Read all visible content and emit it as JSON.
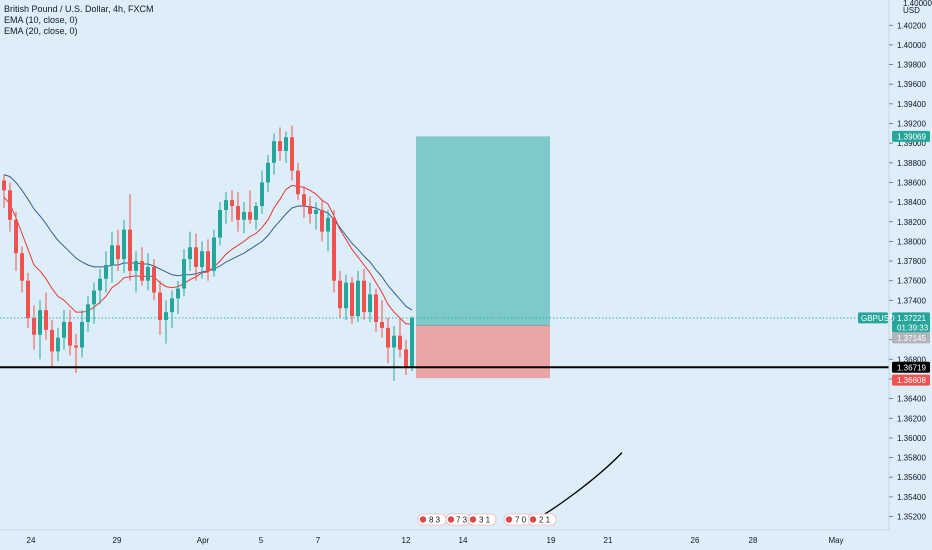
{
  "legend": {
    "symbol_line": "British Pound / U.S. Dollar, 4h, FXCM",
    "ema_fast": "EMA (10, close, 0)",
    "ema_slow": "EMA (20, close, 0)"
  },
  "colors": {
    "background": "#ddeef9",
    "up": "#26a69a",
    "down": "#ef5350",
    "ema_fast": "#e53935",
    "ema_slow": "#3a5f8a",
    "profit_zone": "#7ecacb",
    "loss_zone": "#eaa3a6",
    "support": "#000000",
    "current_price_tag": "#26a69a",
    "tp_tag": "#26a69a",
    "sl_tag": "#ef5350",
    "prev_price_tag": "#b2b5be",
    "level_tag": "#000000"
  },
  "chart_data": {
    "type": "candlestick",
    "title": "British Pound / U.S. Dollar, 4h, FXCM",
    "currency": "USD",
    "y_axis": {
      "ticks": [
        "1.35200",
        "1.35400",
        "1.35600",
        "1.35800",
        "1.36000",
        "1.36200",
        "1.36400",
        "1.36600",
        "1.36800",
        "1.37000",
        "1.37200",
        "1.37400",
        "1.37600",
        "1.37800",
        "1.38000",
        "1.38200",
        "1.38400",
        "1.38600",
        "1.38800",
        "1.39000",
        "1.39200",
        "1.39400",
        "1.39600",
        "1.39800",
        "1.40000",
        "1.40200"
      ],
      "range": [
        1.3513,
        1.4028
      ]
    },
    "x_axis": {
      "labels": [
        "24",
        "29",
        "Apr",
        "5",
        "7",
        "12",
        "14",
        "19",
        "21",
        "26",
        "28",
        "May"
      ]
    },
    "series_names": [
      "EMA (10, close, 0)",
      "EMA (20, close, 0)"
    ],
    "ohlc": [
      [
        1.3862,
        1.3868,
        1.3834,
        1.3852
      ],
      [
        1.3852,
        1.386,
        1.381,
        1.3822
      ],
      [
        1.3822,
        1.383,
        1.377,
        1.3788
      ],
      [
        1.3788,
        1.3795,
        1.3748,
        1.376
      ],
      [
        1.376,
        1.3768,
        1.3712,
        1.3722
      ],
      [
        1.3722,
        1.3735,
        1.369,
        1.3705
      ],
      [
        1.3705,
        1.374,
        1.368,
        1.373
      ],
      [
        1.373,
        1.3748,
        1.37,
        1.371
      ],
      [
        1.371,
        1.372,
        1.3672,
        1.3688
      ],
      [
        1.3688,
        1.3712,
        1.3678,
        1.3702
      ],
      [
        1.3702,
        1.373,
        1.369,
        1.3718
      ],
      [
        1.3718,
        1.373,
        1.3684,
        1.3694
      ],
      [
        1.3694,
        1.3706,
        1.3666,
        1.3692
      ],
      [
        1.3692,
        1.373,
        1.3682,
        1.3718
      ],
      [
        1.3718,
        1.3744,
        1.3708,
        1.3736
      ],
      [
        1.3736,
        1.3758,
        1.3716,
        1.375
      ],
      [
        1.375,
        1.3772,
        1.3736,
        1.3762
      ],
      [
        1.3762,
        1.379,
        1.3748,
        1.3776
      ],
      [
        1.3776,
        1.381,
        1.3758,
        1.3796
      ],
      [
        1.3796,
        1.3812,
        1.377,
        1.3782
      ],
      [
        1.3782,
        1.3822,
        1.3768,
        1.3812
      ],
      [
        1.3812,
        1.3848,
        1.376,
        1.377
      ],
      [
        1.377,
        1.379,
        1.3748,
        1.378
      ],
      [
        1.378,
        1.3794,
        1.3755,
        1.376
      ],
      [
        1.376,
        1.3788,
        1.375,
        1.3774
      ],
      [
        1.3774,
        1.3782,
        1.374,
        1.3748
      ],
      [
        1.3748,
        1.376,
        1.3705,
        1.372
      ],
      [
        1.372,
        1.374,
        1.3696,
        1.3728
      ],
      [
        1.3728,
        1.375,
        1.3712,
        1.3742
      ],
      [
        1.3742,
        1.376,
        1.3726,
        1.3752
      ],
      [
        1.3752,
        1.3792,
        1.3744,
        1.3782
      ],
      [
        1.3782,
        1.381,
        1.377,
        1.3794
      ],
      [
        1.3794,
        1.3808,
        1.376,
        1.3774
      ],
      [
        1.3774,
        1.38,
        1.3762,
        1.379
      ],
      [
        1.379,
        1.3802,
        1.376,
        1.377
      ],
      [
        1.377,
        1.3812,
        1.3764,
        1.3804
      ],
      [
        1.3804,
        1.384,
        1.3796,
        1.3832
      ],
      [
        1.3832,
        1.385,
        1.3818,
        1.3842
      ],
      [
        1.3842,
        1.3852,
        1.382,
        1.3836
      ],
      [
        1.3836,
        1.385,
        1.381,
        1.3822
      ],
      [
        1.3822,
        1.384,
        1.3808,
        1.383
      ],
      [
        1.383,
        1.3852,
        1.3818,
        1.3822
      ],
      [
        1.3822,
        1.384,
        1.3812,
        1.3836
      ],
      [
        1.3836,
        1.3872,
        1.3828,
        1.386
      ],
      [
        1.386,
        1.3888,
        1.385,
        1.388
      ],
      [
        1.388,
        1.391,
        1.3868,
        1.3902
      ],
      [
        1.3902,
        1.3916,
        1.3882,
        1.3892
      ],
      [
        1.3892,
        1.3912,
        1.388,
        1.3906
      ],
      [
        1.3906,
        1.3918,
        1.3862,
        1.3872
      ],
      [
        1.3872,
        1.388,
        1.3842,
        1.3848
      ],
      [
        1.3848,
        1.3856,
        1.3824,
        1.3836
      ],
      [
        1.3836,
        1.3846,
        1.3818,
        1.3828
      ],
      [
        1.3828,
        1.384,
        1.3812,
        1.3832
      ],
      [
        1.3832,
        1.3842,
        1.38,
        1.381
      ],
      [
        1.381,
        1.3832,
        1.379,
        1.3824
      ],
      [
        1.3824,
        1.3832,
        1.3748,
        1.376
      ],
      [
        1.376,
        1.377,
        1.3722,
        1.3732
      ],
      [
        1.3732,
        1.3766,
        1.372,
        1.3758
      ],
      [
        1.3758,
        1.3764,
        1.3716,
        1.3724
      ],
      [
        1.3724,
        1.377,
        1.3718,
        1.376
      ],
      [
        1.376,
        1.3772,
        1.372,
        1.3728
      ],
      [
        1.3728,
        1.3758,
        1.3718,
        1.3746
      ],
      [
        1.3746,
        1.3752,
        1.3708,
        1.3718
      ],
      [
        1.3718,
        1.374,
        1.3702,
        1.3712
      ],
      [
        1.3712,
        1.3722,
        1.3676,
        1.3692
      ],
      [
        1.3692,
        1.3714,
        1.3658,
        1.3704
      ],
      [
        1.3704,
        1.3722,
        1.3682,
        1.369
      ],
      [
        1.369,
        1.37,
        1.3664,
        1.3672
      ],
      [
        1.3672,
        1.3724,
        1.3668,
        1.3722
      ]
    ],
    "ema10": [
      1.3845,
      1.3838,
      1.3824,
      1.3808,
      1.3792,
      1.3776,
      1.377,
      1.3762,
      1.3752,
      1.3744,
      1.374,
      1.3734,
      1.3728,
      1.3728,
      1.3729,
      1.3733,
      1.3738,
      1.3744,
      1.3753,
      1.3757,
      1.3763,
      1.3764,
      1.3765,
      1.3764,
      1.3765,
      1.3764,
      1.3758,
      1.3754,
      1.3753,
      1.3754,
      1.3757,
      1.3761,
      1.3764,
      1.3768,
      1.3769,
      1.3774,
      1.378,
      1.3787,
      1.3792,
      1.3796,
      1.38,
      1.3805,
      1.3808,
      1.3814,
      1.3822,
      1.3834,
      1.3843,
      1.3853,
      1.3857,
      1.3856,
      1.3855,
      1.3852,
      1.3848,
      1.3842,
      1.3838,
      1.3826,
      1.3812,
      1.3802,
      1.3792,
      1.3784,
      1.3776,
      1.3768,
      1.3758,
      1.3748,
      1.3736,
      1.3728,
      1.3722,
      1.3716,
      1.3716
    ],
    "ema20": [
      1.3868,
      1.3866,
      1.386,
      1.3852,
      1.3843,
      1.3833,
      1.3826,
      1.3818,
      1.3809,
      1.3801,
      1.3795,
      1.3789,
      1.3783,
      1.3779,
      1.3776,
      1.3774,
      1.3774,
      1.3774,
      1.3776,
      1.3776,
      1.3778,
      1.3778,
      1.3778,
      1.3777,
      1.3777,
      1.3775,
      1.3772,
      1.3769,
      1.3766,
      1.3765,
      1.3766,
      1.3766,
      1.3767,
      1.3769,
      1.377,
      1.3772,
      1.3775,
      1.3779,
      1.3782,
      1.3785,
      1.3788,
      1.3792,
      1.3796,
      1.38,
      1.3806,
      1.3814,
      1.3821,
      1.3828,
      1.3834,
      1.3836,
      1.3836,
      1.3835,
      1.3834,
      1.3831,
      1.3829,
      1.3822,
      1.3814,
      1.3806,
      1.3798,
      1.3792,
      1.3785,
      1.3779,
      1.3771,
      1.3764,
      1.3755,
      1.3748,
      1.3741,
      1.3734,
      1.373
    ],
    "position": {
      "take_profit": 1.39069,
      "entry": 1.37145,
      "stop_loss": 1.36608
    },
    "support_level": 1.36719,
    "forecast_path": [
      [
        1.3513,
        0
      ],
      [
        1.353,
        0.25
      ],
      [
        1.355,
        0.5
      ],
      [
        1.357,
        0.75
      ],
      [
        1.3585,
        1
      ]
    ]
  },
  "price_tags": {
    "take_profit": "1.39069",
    "symbol": "GBPUSD",
    "current_price": "1.37221",
    "countdown": "01:39:33",
    "previous_price": "1.37145",
    "level": "1.36719",
    "stop_loss": "1.36608"
  },
  "axis_header": {
    "top_value": "1.40000",
    "currency": "USD"
  },
  "event_markers": [
    {
      "icon": "flag-icon",
      "label": "8 3",
      "extra": "7 3"
    },
    {
      "icon": "flag-icon",
      "label": "3 1"
    },
    {
      "icon": "flag-icon",
      "label": "7 0"
    },
    {
      "icon": "flag-icon",
      "label": "2 1"
    }
  ]
}
